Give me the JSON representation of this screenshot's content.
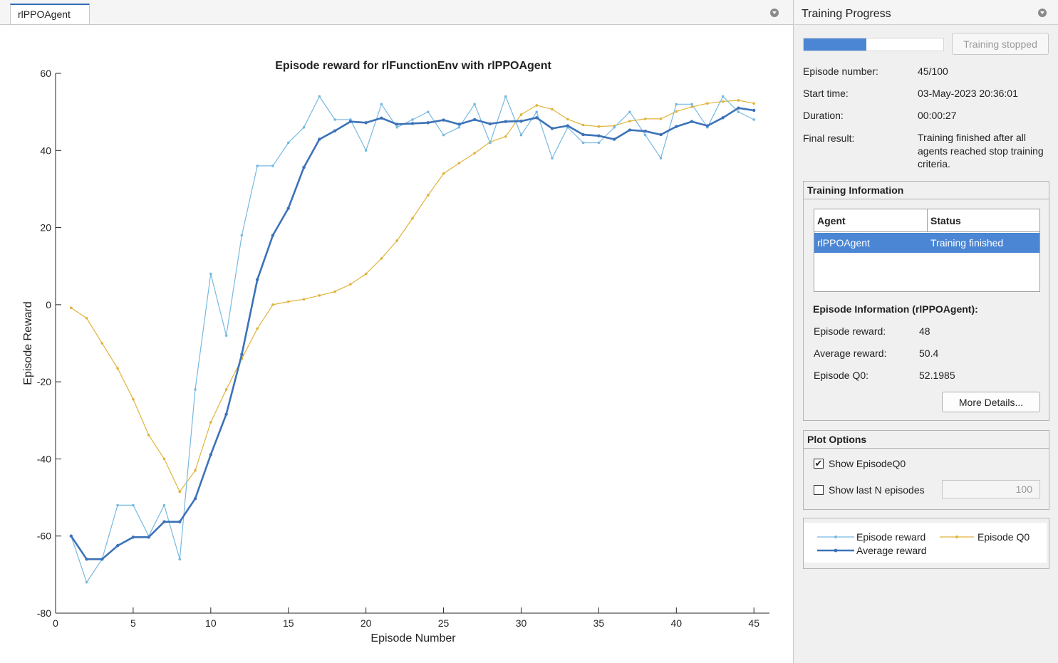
{
  "tab": {
    "label": "rlPPOAgent"
  },
  "panel": {
    "title": "Training Progress",
    "progress": 0.45,
    "stop_button": "Training stopped",
    "info": [
      {
        "label": "Episode number:",
        "value": "45/100"
      },
      {
        "label": "Start time:",
        "value": "03-May-2023 20:36:01"
      },
      {
        "label": "Duration:",
        "value": "00:00:27"
      },
      {
        "label": "Final result:",
        "value": "Training finished after all agents reached stop training criteria."
      }
    ],
    "training_info": {
      "title": "Training Information",
      "columns": [
        "Agent",
        "Status"
      ],
      "rows": [
        {
          "agent": "rlPPOAgent",
          "status": "Training finished"
        }
      ],
      "episode_title": "Episode Information (rlPPOAgent):",
      "episode": [
        {
          "label": "Episode reward:",
          "value": "48"
        },
        {
          "label": "Average reward:",
          "value": "50.4"
        },
        {
          "label": "Episode Q0:",
          "value": "52.1985"
        }
      ],
      "more_details": "More Details..."
    },
    "plot_options": {
      "title": "Plot Options",
      "show_q0": {
        "label": "Show EpisodeQ0",
        "checked": true
      },
      "show_last_n": {
        "label": "Show last N episodes",
        "checked": false,
        "value": "100"
      }
    }
  },
  "colors": {
    "episode_reward": "#77b9e0",
    "average_reward": "#3c72b8",
    "episode_q0": "#e0b43a",
    "accent": "#4a86d4"
  },
  "chart_data": {
    "type": "line",
    "title": "Episode reward for rlFunctionEnv with rlPPOAgent",
    "xlabel": "Episode Number",
    "ylabel": "Episode Reward",
    "xlim": [
      0,
      46
    ],
    "ylim": [
      -80,
      60
    ],
    "xticks": [
      0,
      5,
      10,
      15,
      20,
      25,
      30,
      35,
      40,
      45
    ],
    "yticks": [
      -80,
      -60,
      -40,
      -20,
      0,
      20,
      40,
      60
    ],
    "grid": false,
    "x": [
      1,
      2,
      3,
      4,
      5,
      6,
      7,
      8,
      9,
      10,
      11,
      12,
      13,
      14,
      15,
      16,
      17,
      18,
      19,
      20,
      21,
      22,
      23,
      24,
      25,
      26,
      27,
      28,
      29,
      30,
      31,
      32,
      33,
      34,
      35,
      36,
      37,
      38,
      39,
      40,
      41,
      42,
      43,
      44,
      45
    ],
    "series": [
      {
        "name": "Episode reward",
        "values": [
          -60,
          -72,
          -66,
          -52,
          -52,
          -60,
          -52,
          -66,
          -22,
          8,
          -8,
          18,
          36,
          36,
          42,
          46,
          54,
          48,
          48,
          40,
          52,
          46,
          48,
          50,
          44,
          46,
          52,
          42,
          54,
          44,
          50,
          38,
          46,
          42,
          42,
          46,
          50,
          44,
          38,
          52,
          52,
          46,
          54,
          50,
          48
        ]
      },
      {
        "name": "Average reward",
        "values": [
          -60,
          -66,
          -66,
          -62.5,
          -60.3,
          -60.3,
          -56.3,
          -56.3,
          -50.3,
          -38.9,
          -28.4,
          -12.9,
          6.5,
          18,
          25,
          35.6,
          42.9,
          45.1,
          47.5,
          47.2,
          48.4,
          46.8,
          47,
          47.2,
          47.9,
          46.8,
          48,
          46.9,
          47.5,
          47.6,
          48.5,
          45.7,
          46.4,
          44.1,
          43.8,
          42.9,
          45.3,
          45,
          44.1,
          46.2,
          47.5,
          46.4,
          48.5,
          51,
          50.4
        ]
      },
      {
        "name": "Episode Q0",
        "values": [
          -0.8,
          -3.5,
          -10,
          -16.5,
          -24.5,
          -33.8,
          -40,
          -48.5,
          -43,
          -30.5,
          -22,
          -14,
          -6.2,
          0,
          0.8,
          1.4,
          2.4,
          3.4,
          5.3,
          8,
          12,
          16.6,
          22.4,
          28.4,
          34,
          36.7,
          39.3,
          42.2,
          43.6,
          49.3,
          51.7,
          50.7,
          48.1,
          46.6,
          46.2,
          46.4,
          47.6,
          48.2,
          48.2,
          50.1,
          51.3,
          52.2,
          52.7,
          53,
          52.2
        ]
      }
    ],
    "legend": "bottom-right panel"
  }
}
